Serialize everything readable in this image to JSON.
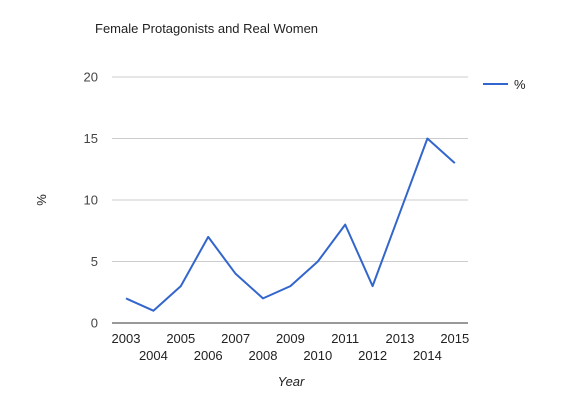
{
  "chart_data": {
    "type": "line",
    "title": "Female Protagonists and Real Women",
    "xlabel": "Year",
    "ylabel": "%",
    "categories": [
      "2003",
      "2004",
      "2005",
      "2006",
      "2007",
      "2008",
      "2009",
      "2010",
      "2011",
      "2012",
      "2013",
      "2014",
      "2015"
    ],
    "series": [
      {
        "name": "%",
        "values": [
          2,
          1,
          3,
          7,
          4,
          2,
          3,
          5,
          8,
          3,
          9,
          15,
          13
        ],
        "color": "#3366cc"
      }
    ],
    "ylim": [
      0,
      20
    ],
    "yticks": [
      "0",
      "5",
      "10",
      "15",
      "20"
    ],
    "grid": true,
    "legend_position": "right"
  }
}
